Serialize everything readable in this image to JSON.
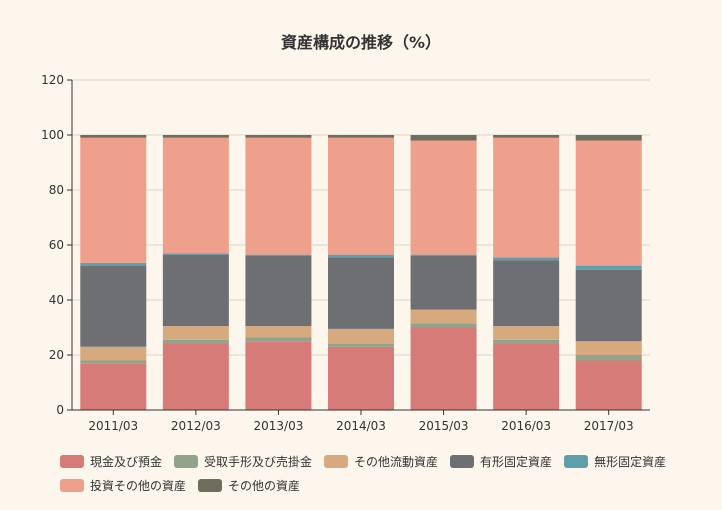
{
  "chart_data": {
    "type": "bar",
    "stacked": true,
    "title": "資産構成の推移（%）",
    "categories": [
      "2011/03",
      "2012/03",
      "2013/03",
      "2014/03",
      "2015/03",
      "2016/03",
      "2017/03"
    ],
    "ylim": [
      0,
      120
    ],
    "yticks": [
      0,
      20,
      40,
      60,
      80,
      100,
      120
    ],
    "grid": true,
    "legend_position": "bottom",
    "series": [
      {
        "name": "現金及び預金",
        "color": "#d77b79",
        "values": [
          17,
          24,
          25,
          23,
          30,
          24,
          18
        ]
      },
      {
        "name": "受取手形及び売掛金",
        "color": "#91a38b",
        "values": [
          1,
          1.5,
          1.5,
          1,
          1.5,
          1.5,
          2
        ]
      },
      {
        "name": "その他流動資産",
        "color": "#d6a97f",
        "values": [
          5,
          5,
          4,
          5.5,
          5,
          5,
          5
        ]
      },
      {
        "name": "有形固定資産",
        "color": "#6e6f73",
        "values": [
          29.5,
          26,
          25.5,
          26,
          19.5,
          24,
          26
        ]
      },
      {
        "name": "無形固定資産",
        "color": "#5f9fa9",
        "values": [
          1,
          0.5,
          0.5,
          1,
          0.5,
          1,
          1.5
        ]
      },
      {
        "name": "投資その他の資産",
        "color": "#efa08c",
        "values": [
          45.5,
          42,
          42.5,
          42.5,
          41.5,
          43.5,
          45.5
        ]
      },
      {
        "name": "その他の資産",
        "color": "#6d6e5c",
        "values": [
          1,
          1,
          1,
          1,
          2,
          1,
          2
        ]
      }
    ]
  }
}
